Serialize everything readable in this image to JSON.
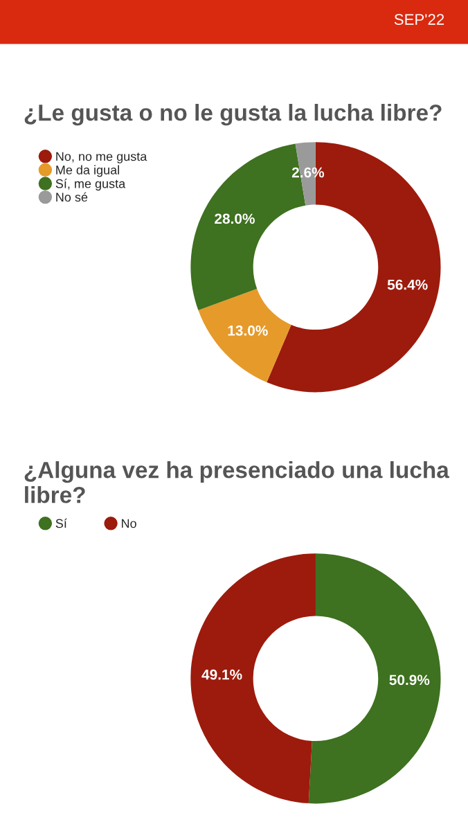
{
  "chart_data": [
    {
      "type": "donut",
      "title": "¿Le gusta o no le gusta la lucha libre?",
      "annotations": [
        "SEP'22"
      ],
      "categories": [
        "No, no me gusta",
        "Me da igual",
        "Sí, me gusta",
        "No sé"
      ],
      "values": [
        56.4,
        13.0,
        28.0,
        2.6
      ],
      "value_labels": [
        "56.4%",
        "13.0%",
        "28.0%",
        "2.6%"
      ],
      "colors": [
        "#9c1b0d",
        "#e69a2a",
        "#3e7120",
        "#9a9a9a"
      ],
      "legend": "top left"
    },
    {
      "type": "donut",
      "title": "¿Alguna vez ha presenciado una lucha libre?",
      "categories": [
        "Sí",
        "No"
      ],
      "values": [
        50.9,
        49.1
      ],
      "value_labels": [
        "50.9%",
        "49.1%"
      ],
      "colors": [
        "#3e7120",
        "#9c1b0d"
      ],
      "legend": "top left"
    }
  ]
}
